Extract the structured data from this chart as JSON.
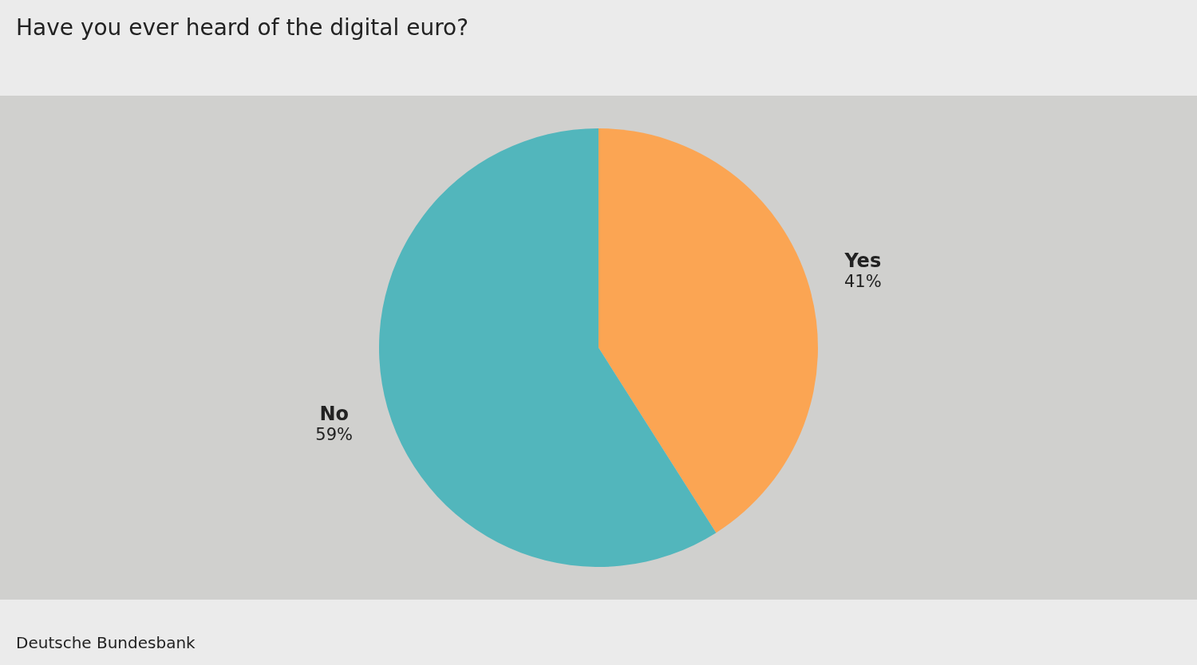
{
  "chart_data": {
    "type": "pie",
    "title": "Have you ever heard of the digital euro?",
    "categories": [
      "Yes",
      "No"
    ],
    "values": [
      41,
      59
    ],
    "colors": [
      "#fba553",
      "#52b6bc"
    ],
    "value_labels": [
      "41%",
      "59%"
    ],
    "annotations": [
      "Deutsche Bundesbank"
    ]
  }
}
